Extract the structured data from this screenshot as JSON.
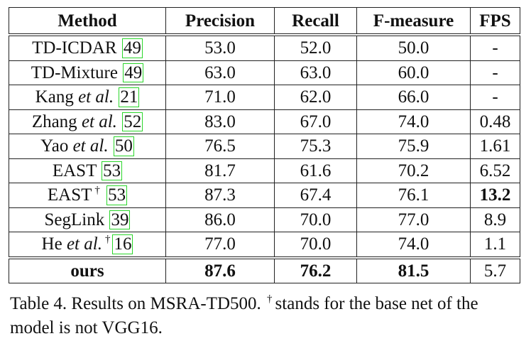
{
  "table": {
    "headers": [
      "Method",
      "Precision",
      "Recall",
      "F-measure",
      "FPS"
    ],
    "rows": [
      {
        "method": {
          "pre": "TD-ICDAR ",
          "ital": "",
          "dagger": "",
          "ref": "49"
        },
        "precision": "53.0",
        "recall": "52.0",
        "fmeasure": "50.0",
        "fps": "-"
      },
      {
        "method": {
          "pre": "TD-Mixture ",
          "ital": "",
          "dagger": "",
          "ref": "49"
        },
        "precision": "63.0",
        "recall": "63.0",
        "fmeasure": "60.0",
        "fps": "-"
      },
      {
        "method": {
          "pre": "Kang ",
          "ital": "et al.",
          "dagger": "",
          "ref": "21"
        },
        "precision": "71.0",
        "recall": "62.0",
        "fmeasure": "66.0",
        "fps": "-"
      },
      {
        "method": {
          "pre": "Zhang ",
          "ital": "et al.",
          "dagger": "",
          "ref": "52"
        },
        "precision": "83.0",
        "recall": "67.0",
        "fmeasure": "74.0",
        "fps": "0.48"
      },
      {
        "method": {
          "pre": "Yao ",
          "ital": "et al.",
          "dagger": "",
          "ref": "50"
        },
        "precision": "76.5",
        "recall": "75.3",
        "fmeasure": "75.9",
        "fps": "1.61"
      },
      {
        "method": {
          "pre": "EAST ",
          "ital": "",
          "dagger": "",
          "ref": "53"
        },
        "precision": "81.7",
        "recall": "61.6",
        "fmeasure": "70.2",
        "fps": "6.52"
      },
      {
        "method": {
          "pre": "EAST",
          "ital": "",
          "dagger": "†",
          "ref": "53"
        },
        "precision": "87.3",
        "recall": "67.4",
        "fmeasure": "76.1",
        "fps": "13.2"
      },
      {
        "method": {
          "pre": "SegLink ",
          "ital": "",
          "dagger": "",
          "ref": "39"
        },
        "precision": "86.0",
        "recall": "70.0",
        "fmeasure": "77.0",
        "fps": "8.9"
      },
      {
        "method": {
          "pre": "He ",
          "ital": "et al.",
          "dagger": "†",
          "ref": "16"
        },
        "precision": "77.0",
        "recall": "70.0",
        "fmeasure": "74.0",
        "fps": "1.1"
      }
    ],
    "ours": {
      "method": "ours",
      "precision": "87.6",
      "recall": "76.2",
      "fmeasure": "81.5",
      "fps": "5.7"
    },
    "ref_box_color": "#2bd62b"
  },
  "caption": {
    "part1": "Table 4. Results on MSRA-TD500.",
    "dagger": "†",
    "part2": "stands for the base net of the",
    "line2": "model is not VGG16."
  }
}
